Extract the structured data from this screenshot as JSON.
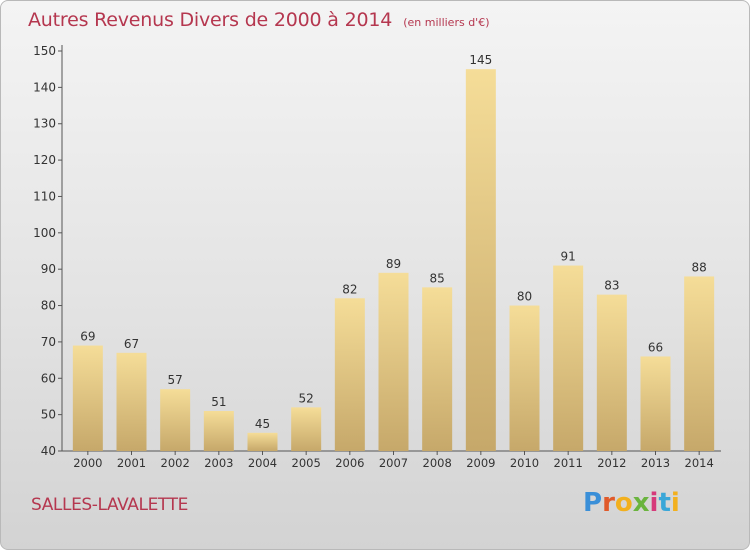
{
  "header": {
    "title": "Autres Revenus Divers de 2000 à 2014",
    "subtitle": "(en milliers d'€)"
  },
  "footer": {
    "city": "SALLES-LAVALETTE",
    "logo_text": "Proxiti"
  },
  "chart_data": {
    "type": "bar",
    "title": "Autres Revenus Divers de 2000 à 2014",
    "subtitle": "(en milliers d'€)",
    "xlabel": "",
    "ylabel": "",
    "categories": [
      "2000",
      "2001",
      "2002",
      "2003",
      "2004",
      "2005",
      "2006",
      "2007",
      "2008",
      "2009",
      "2010",
      "2011",
      "2012",
      "2013",
      "2014"
    ],
    "values": [
      69,
      67,
      57,
      51,
      45,
      52,
      82,
      89,
      85,
      145,
      80,
      91,
      83,
      66,
      88
    ],
    "ylim": [
      40,
      150
    ],
    "yticks": [
      40,
      50,
      60,
      70,
      80,
      90,
      100,
      110,
      120,
      130,
      140,
      150
    ],
    "grid": false,
    "legend": "none",
    "colors": {
      "bar_light": "#f5dd98",
      "bar_dark": "#c6a86a",
      "text": "#333333",
      "axis": "#555555",
      "title": "#b5374f"
    }
  }
}
